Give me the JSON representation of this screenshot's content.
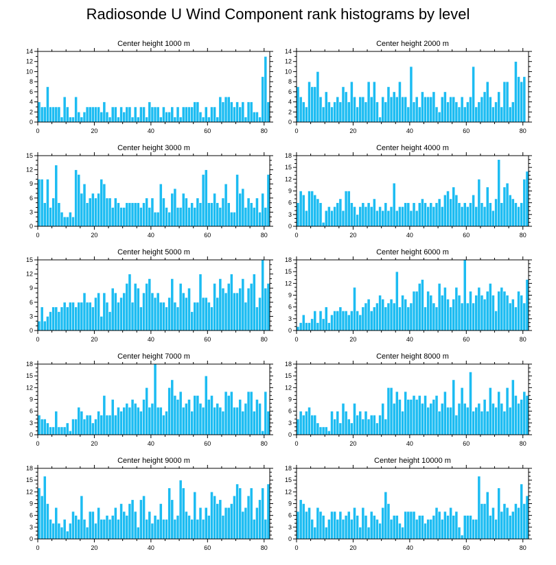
{
  "title": "Radiosonde U Wind Component rank histograms by level",
  "colors": {
    "bar": "#1cbcf2",
    "axis": "#000000"
  },
  "chart_data": [
    {
      "type": "bar",
      "title": "Center height 1000 m",
      "xlim": [
        0,
        82
      ],
      "ylim": [
        0,
        14
      ],
      "xticks": [
        0,
        20,
        40,
        60,
        80
      ],
      "yticks": [
        0,
        2,
        4,
        6,
        8,
        10,
        12,
        14
      ],
      "values": [
        4,
        3,
        3,
        7,
        3,
        3,
        3,
        3,
        1,
        5,
        3,
        1,
        1,
        5,
        2,
        1,
        2,
        3,
        3,
        3,
        3,
        3,
        2,
        4,
        2,
        1,
        3,
        3,
        1,
        3,
        2,
        3,
        3,
        1,
        3,
        1,
        3,
        3,
        1,
        4,
        3,
        3,
        3,
        1,
        3,
        2,
        2,
        3,
        1,
        3,
        1,
        3,
        3,
        3,
        3,
        4,
        4,
        2,
        1,
        3,
        1,
        3,
        3,
        1,
        5,
        4,
        5,
        5,
        4,
        3,
        4,
        3,
        4,
        1,
        4,
        4,
        2,
        2,
        1,
        9,
        13,
        4
      ]
    },
    {
      "type": "bar",
      "title": "Center height 2000 m",
      "xlim": [
        0,
        82
      ],
      "ylim": [
        0,
        14
      ],
      "xticks": [
        0,
        20,
        40,
        60,
        80
      ],
      "yticks": [
        0,
        2,
        4,
        6,
        8,
        10,
        12,
        14
      ],
      "values": [
        7,
        5,
        4,
        3,
        8,
        7,
        7,
        10,
        5,
        3,
        6,
        4,
        3,
        4,
        5,
        4,
        7,
        6,
        4,
        8,
        5,
        3,
        5,
        5,
        4,
        8,
        5,
        8,
        4,
        1,
        5,
        4,
        7,
        5,
        6,
        5,
        8,
        5,
        5,
        3,
        11,
        4,
        5,
        3,
        6,
        5,
        5,
        5,
        6,
        3,
        2,
        5,
        6,
        4,
        5,
        5,
        4,
        3,
        5,
        3,
        4,
        5,
        11,
        3,
        4,
        5,
        6,
        8,
        5,
        3,
        4,
        6,
        3,
        8,
        8,
        3,
        4,
        12,
        9,
        8,
        9
      ]
    },
    {
      "type": "bar",
      "title": "Center height 3000 m",
      "xlim": [
        0,
        82
      ],
      "ylim": [
        0,
        15
      ],
      "xticks": [
        0,
        20,
        40,
        60,
        80
      ],
      "yticks": [
        0,
        3,
        6,
        9,
        12,
        15
      ],
      "values": [
        10,
        10,
        5,
        10,
        4,
        6,
        13,
        5,
        3,
        2,
        2,
        3,
        2,
        12,
        11,
        7,
        9,
        5,
        6,
        7,
        6,
        7,
        10,
        9,
        6,
        6,
        4,
        6,
        5,
        4,
        4,
        5,
        5,
        5,
        5,
        5,
        4,
        5,
        6,
        4,
        6,
        3,
        3,
        9,
        6,
        4,
        3,
        7,
        8,
        4,
        4,
        7,
        6,
        4,
        5,
        4,
        6,
        5,
        11,
        12,
        5,
        5,
        7,
        5,
        4,
        6,
        9,
        5,
        3,
        3,
        11,
        7,
        8,
        4,
        6,
        5,
        4,
        6,
        3,
        7,
        4,
        11
      ]
    },
    {
      "type": "bar",
      "title": "Center height 4000 m",
      "xlim": [
        0,
        82
      ],
      "ylim": [
        0,
        18
      ],
      "xticks": [
        0,
        20,
        40,
        60,
        80
      ],
      "yticks": [
        0,
        3,
        6,
        9,
        12,
        15,
        18
      ],
      "values": [
        6,
        9,
        8,
        4,
        9,
        9,
        8,
        7,
        6,
        1,
        4,
        5,
        4,
        5,
        6,
        7,
        4,
        9,
        9,
        6,
        5,
        3,
        5,
        6,
        5,
        6,
        5,
        7,
        4,
        5,
        4,
        6,
        4,
        5,
        11,
        4,
        5,
        5,
        6,
        6,
        4,
        6,
        4,
        6,
        7,
        6,
        5,
        6,
        5,
        6,
        7,
        5,
        8,
        9,
        7,
        10,
        8,
        6,
        5,
        6,
        5,
        6,
        8,
        5,
        12,
        6,
        5,
        10,
        6,
        4,
        7,
        17,
        6,
        10,
        11,
        8,
        7,
        6,
        5,
        6,
        12,
        14
      ]
    },
    {
      "type": "bar",
      "title": "Center height 5000 m",
      "xlim": [
        0,
        82
      ],
      "ylim": [
        0,
        15
      ],
      "xticks": [
        0,
        20,
        40,
        60,
        80
      ],
      "yticks": [
        0,
        3,
        6,
        9,
        12,
        15
      ],
      "values": [
        2,
        5,
        2,
        3,
        4,
        5,
        5,
        4,
        5,
        6,
        5,
        6,
        6,
        5,
        6,
        6,
        8,
        6,
        6,
        5,
        7,
        8,
        3,
        8,
        6,
        4,
        9,
        8,
        6,
        7,
        8,
        10,
        12,
        6,
        10,
        9,
        5,
        8,
        10,
        11,
        8,
        7,
        8,
        6,
        6,
        5,
        7,
        11,
        6,
        5,
        10,
        8,
        7,
        9,
        4,
        6,
        6,
        12,
        7,
        7,
        6,
        5,
        10,
        7,
        11,
        9,
        8,
        10,
        12,
        8,
        8,
        9,
        11,
        6,
        9,
        10,
        12,
        5,
        7,
        15,
        9,
        10
      ]
    },
    {
      "type": "bar",
      "title": "Center height 6000 m",
      "xlim": [
        0,
        82
      ],
      "ylim": [
        0,
        18
      ],
      "xticks": [
        0,
        20,
        40,
        60,
        80
      ],
      "yticks": [
        0,
        3,
        6,
        9,
        12,
        15,
        18
      ],
      "values": [
        1,
        2,
        4,
        2,
        2,
        3,
        5,
        2,
        5,
        3,
        6,
        2,
        4,
        5,
        5,
        6,
        5,
        5,
        4,
        5,
        11,
        5,
        4,
        6,
        7,
        8,
        5,
        6,
        7,
        9,
        8,
        6,
        7,
        8,
        7,
        15,
        6,
        9,
        8,
        6,
        7,
        10,
        10,
        12,
        13,
        6,
        10,
        9,
        7,
        6,
        12,
        9,
        11,
        8,
        6,
        8,
        11,
        9,
        7,
        18,
        7,
        10,
        7,
        9,
        11,
        9,
        8,
        10,
        12,
        9,
        5,
        10,
        11,
        10,
        9,
        7,
        8,
        6,
        10,
        9,
        7,
        13
      ]
    },
    {
      "type": "bar",
      "title": "Center height 7000 m",
      "xlim": [
        0,
        82
      ],
      "ylim": [
        0,
        18
      ],
      "xticks": [
        0,
        20,
        40,
        60,
        80
      ],
      "yticks": [
        0,
        3,
        6,
        9,
        12,
        15,
        18
      ],
      "values": [
        5,
        4,
        4,
        3,
        2,
        2,
        6,
        2,
        2,
        2,
        3,
        1,
        4,
        4,
        7,
        6,
        4,
        5,
        5,
        3,
        4,
        6,
        5,
        10,
        5,
        5,
        9,
        5,
        7,
        6,
        7,
        8,
        7,
        9,
        8,
        7,
        6,
        9,
        12,
        7,
        8,
        18,
        7,
        7,
        5,
        6,
        12,
        14,
        10,
        9,
        11,
        7,
        8,
        9,
        6,
        10,
        10,
        8,
        7,
        15,
        9,
        10,
        7,
        8,
        7,
        6,
        11,
        10,
        11,
        7,
        7,
        9,
        6,
        8,
        11,
        11,
        6,
        9,
        8,
        1,
        11,
        6
      ]
    },
    {
      "type": "bar",
      "title": "Center height 8000 m",
      "xlim": [
        0,
        82
      ],
      "ylim": [
        0,
        18
      ],
      "xticks": [
        0,
        20,
        40,
        60,
        80
      ],
      "yticks": [
        0,
        3,
        6,
        9,
        12,
        15,
        18
      ],
      "values": [
        4,
        6,
        5,
        6,
        7,
        5,
        5,
        3,
        2,
        2,
        2,
        1,
        6,
        4,
        6,
        3,
        8,
        6,
        4,
        3,
        8,
        5,
        6,
        4,
        6,
        4,
        5,
        5,
        3,
        5,
        8,
        4,
        12,
        12,
        8,
        11,
        9,
        6,
        11,
        9,
        9,
        10,
        9,
        10,
        8,
        10,
        7,
        8,
        9,
        10,
        6,
        8,
        11,
        7,
        7,
        14,
        5,
        8,
        12,
        8,
        7,
        16,
        6,
        7,
        8,
        6,
        9,
        6,
        12,
        8,
        7,
        11,
        8,
        6,
        12,
        7,
        14,
        10,
        8,
        9,
        11,
        10
      ]
    },
    {
      "type": "bar",
      "title": "Center height 9000 m",
      "xlim": [
        0,
        82
      ],
      "ylim": [
        0,
        18
      ],
      "xticks": [
        0,
        20,
        40,
        60,
        80
      ],
      "yticks": [
        0,
        3,
        6,
        9,
        12,
        15,
        18
      ],
      "values": [
        13,
        11,
        16,
        9,
        5,
        4,
        8,
        4,
        3,
        5,
        2,
        4,
        7,
        6,
        5,
        11,
        5,
        3,
        7,
        7,
        4,
        8,
        5,
        5,
        6,
        5,
        6,
        8,
        5,
        9,
        7,
        6,
        9,
        10,
        7,
        3,
        10,
        11,
        5,
        7,
        4,
        6,
        5,
        9,
        5,
        5,
        13,
        10,
        5,
        6,
        15,
        13,
        7,
        6,
        5,
        12,
        5,
        8,
        5,
        8,
        6,
        12,
        11,
        9,
        10,
        6,
        8,
        8,
        9,
        11,
        14,
        13,
        7,
        8,
        11,
        13,
        5,
        8,
        10,
        13,
        5,
        14
      ]
    },
    {
      "type": "bar",
      "title": "Center height 10000 m",
      "xlim": [
        0,
        82
      ],
      "ylim": [
        0,
        18
      ],
      "xticks": [
        0,
        20,
        40,
        60,
        80
      ],
      "yticks": [
        0,
        3,
        6,
        9,
        12,
        15,
        18
      ],
      "values": [
        7,
        10,
        9,
        7,
        8,
        5,
        3,
        8,
        7,
        6,
        3,
        5,
        7,
        7,
        5,
        7,
        5,
        6,
        7,
        5,
        8,
        6,
        3,
        8,
        6,
        3,
        7,
        6,
        5,
        4,
        8,
        12,
        9,
        5,
        6,
        6,
        4,
        3,
        7,
        7,
        7,
        7,
        5,
        6,
        6,
        4,
        5,
        5,
        6,
        8,
        7,
        5,
        7,
        6,
        8,
        6,
        7,
        3,
        1,
        6,
        6,
        6,
        5,
        5,
        16,
        9,
        9,
        12,
        6,
        8,
        5,
        13,
        7,
        9,
        8,
        6,
        7,
        9,
        8,
        14,
        9,
        11
      ]
    }
  ]
}
